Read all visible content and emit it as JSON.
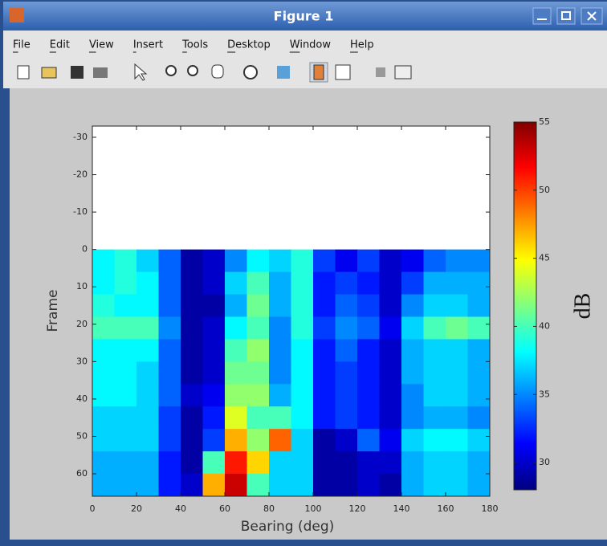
{
  "window": {
    "title": "Figure 1",
    "menu": [
      "File",
      "Edit",
      "View",
      "Insert",
      "Tools",
      "Desktop",
      "Window",
      "Help"
    ]
  },
  "chart_data": {
    "type": "heatmap",
    "x_label": "Bearing (deg)",
    "y_label": "Frame",
    "colorbar_label": "dB",
    "x": [
      5,
      15,
      25,
      35,
      45,
      55,
      65,
      75,
      85,
      95,
      105,
      115,
      125,
      135,
      145,
      155,
      165,
      175
    ],
    "y": [
      3,
      9,
      15,
      21,
      27,
      33,
      39,
      45,
      51,
      57,
      63
    ],
    "values": [
      [
        38,
        39,
        37,
        34,
        29,
        30,
        35,
        38,
        37,
        39,
        33,
        31,
        33,
        30,
        31,
        34,
        35,
        35
      ],
      [
        38,
        39,
        38,
        34,
        29,
        30,
        37,
        40,
        36,
        39,
        32,
        33,
        32,
        30,
        33,
        36,
        36,
        36
      ],
      [
        39,
        38,
        38,
        34,
        29,
        29,
        36,
        41,
        36,
        39,
        32,
        34,
        33,
        30,
        35,
        37,
        37,
        36
      ],
      [
        40,
        40,
        40,
        35,
        29,
        30,
        38,
        40,
        35,
        39,
        33,
        35,
        34,
        31,
        37,
        40,
        41,
        40
      ],
      [
        38,
        38,
        38,
        34,
        29,
        30,
        40,
        42,
        35,
        38,
        32,
        34,
        32,
        30,
        36,
        37,
        37,
        36
      ],
      [
        38,
        38,
        37,
        34,
        29,
        30,
        41,
        41,
        35,
        38,
        32,
        33,
        32,
        30,
        36,
        37,
        37,
        36
      ],
      [
        38,
        38,
        37,
        34,
        30,
        31,
        42,
        42,
        36,
        38,
        32,
        33,
        32,
        30,
        35,
        37,
        37,
        36
      ],
      [
        37,
        37,
        37,
        33,
        29,
        32,
        44,
        40,
        40,
        38,
        32,
        33,
        32,
        30,
        35,
        36,
        36,
        35
      ],
      [
        37,
        37,
        37,
        33,
        29,
        33,
        47,
        42,
        49,
        37,
        29,
        30,
        34,
        31,
        37,
        38,
        38,
        37
      ],
      [
        36,
        36,
        36,
        32,
        29,
        40,
        51,
        46,
        37,
        37,
        29,
        29,
        30,
        30,
        36,
        37,
        37,
        36
      ],
      [
        36,
        36,
        36,
        32,
        30,
        47,
        53,
        40,
        37,
        37,
        29,
        29,
        30,
        29,
        36,
        37,
        37,
        36
      ]
    ],
    "xlim": [
      0,
      180
    ],
    "xticks": [
      0,
      20,
      40,
      60,
      80,
      100,
      120,
      140,
      160,
      180
    ],
    "ylim": [
      -33,
      66
    ],
    "yticks": [
      -30,
      -20,
      -10,
      0,
      10,
      20,
      30,
      40,
      50,
      60
    ],
    "y_reversed": true,
    "clim": [
      28,
      55
    ],
    "cticks": [
      30,
      35,
      40,
      45,
      50,
      55
    ],
    "colormap": "jet"
  }
}
